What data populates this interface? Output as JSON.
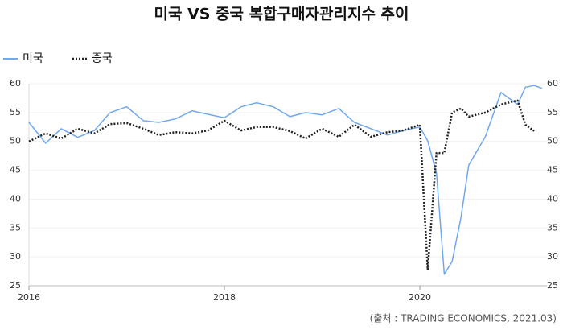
{
  "chart_data": {
    "type": "line",
    "title": "미국 VS 중국 복합구매자관리지수 추이",
    "source": "(출처 : TRADING ECONOMICS, 2021.03)",
    "x": [
      2016,
      2016.17,
      2016.33,
      2016.5,
      2016.67,
      2016.83,
      2017,
      2017.17,
      2017.33,
      2017.5,
      2017.67,
      2017.83,
      2018,
      2018.17,
      2018.33,
      2018.5,
      2018.67,
      2018.83,
      2019,
      2019.17,
      2019.33,
      2019.5,
      2019.67,
      2019.83,
      2020,
      2020.08,
      2020.17,
      2020.25,
      2020.33,
      2020.42,
      2020.5,
      2020.67,
      2020.83,
      2021,
      2021.08,
      2021.17,
      2021.25
    ],
    "series": [
      {
        "name": "미국",
        "color": "#6fa8ee",
        "style": "solid",
        "values": [
          53.3,
          49.7,
          52.2,
          50.7,
          51.9,
          55,
          56,
          53.6,
          53.3,
          53.9,
          55.3,
          54.7,
          54.1,
          56,
          56.7,
          56,
          54.3,
          55,
          54.6,
          55.7,
          53.3,
          52.2,
          51.1,
          51.9,
          52.5,
          50.1,
          44.5,
          27,
          29.2,
          36.8,
          45.9,
          50.8,
          58.5,
          56.4,
          59.4,
          59.7,
          59.2
        ]
      },
      {
        "name": "중국",
        "color": "#222222",
        "style": "dotted",
        "values": [
          50,
          51.4,
          50.5,
          52.2,
          51.4,
          53,
          53.2,
          52.2,
          51.1,
          51.6,
          51.4,
          51.9,
          53.6,
          51.9,
          52.5,
          52.5,
          51.8,
          50.5,
          52.2,
          50.8,
          52.9,
          50.8,
          51.6,
          51.9,
          52.9,
          27.8,
          48,
          48,
          55,
          55.7,
          54.3,
          55,
          56.4,
          57.1,
          52.9,
          51.8,
          null
        ]
      }
    ],
    "xlim": [
      2016,
      2021.3
    ],
    "xticks": [
      2016,
      2018,
      2020
    ],
    "ylim": [
      25,
      60
    ],
    "yticks": [
      25,
      30,
      35,
      40,
      45,
      50,
      55,
      60
    ],
    "y2lim": [
      25,
      60
    ],
    "y2ticks": [
      25,
      30,
      35,
      40,
      45,
      50,
      55,
      60
    ],
    "grid": true,
    "legend": "top-left"
  }
}
